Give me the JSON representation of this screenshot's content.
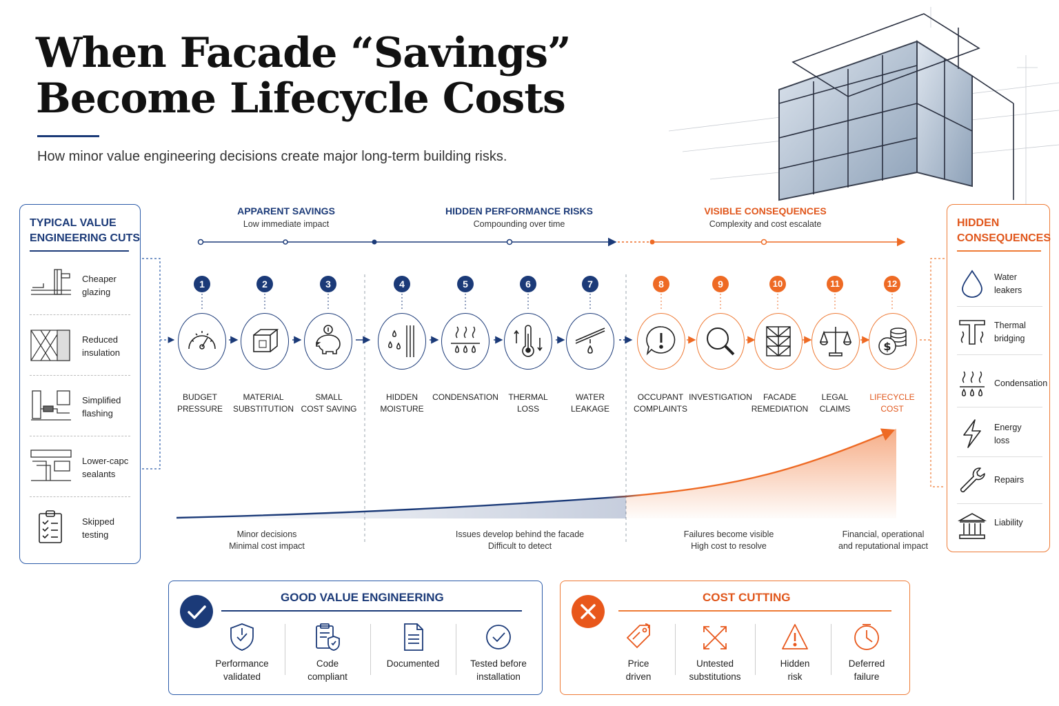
{
  "title_line1": "When Facade “Savings”",
  "title_line2": "Become Lifecycle Costs",
  "subtitle": "How minor value engineering decisions create major long-term building risks.",
  "left_panel": {
    "title_line1": "TYPICAL VALUE",
    "title_line2": "ENGINEERING CUTS",
    "items": [
      {
        "line1": "Cheaper",
        "line2": "glazing",
        "icon": "glazing-section-icon"
      },
      {
        "line1": "Reduced",
        "line2": "insulation",
        "icon": "insulation-section-icon"
      },
      {
        "line1": "Simplified",
        "line2": "flashing",
        "icon": "flashing-section-icon"
      },
      {
        "line1": "Lower-capc",
        "line2": "sealants",
        "icon": "sealant-section-icon"
      },
      {
        "line1": "Skipped",
        "line2": "testing",
        "icon": "checklist-icon"
      }
    ]
  },
  "right_panel": {
    "title_line1": "HIDDEN",
    "title_line2": "CONSEQUENCES",
    "items": [
      {
        "line1": "Water",
        "line2": "leakers",
        "icon": "water-drop-icon"
      },
      {
        "line1": "Thermal",
        "line2": "bridging",
        "icon": "thermal-bridge-icon"
      },
      {
        "line1": "Condensation",
        "line2": "",
        "icon": "condensation-icon"
      },
      {
        "line1": "Energy",
        "line2": "loss",
        "icon": "lightning-icon"
      },
      {
        "line1": "Repairs",
        "line2": "",
        "icon": "wrench-icon"
      },
      {
        "line1": "Liability",
        "line2": "",
        "icon": "courthouse-icon"
      }
    ]
  },
  "phases": [
    {
      "heading": "APPARENT SAVINGS",
      "sub": "Low immediate impact"
    },
    {
      "heading": "HIDDEN PERFORMANCE RISKS",
      "sub": "Compounding over time"
    },
    {
      "heading": "VISIBLE CONSEQUENCES",
      "sub": "Complexity and cost escalate"
    }
  ],
  "steps": [
    {
      "num": "1",
      "line1": "BUDGET",
      "line2": "PRESSURE",
      "icon": "gauge-icon"
    },
    {
      "num": "2",
      "line1": "MATERIAL",
      "line2": "SUBSTITUTION",
      "icon": "cube-icon"
    },
    {
      "num": "3",
      "line1": "SMALL",
      "line2": "COST SAVING",
      "icon": "piggy-bank-icon"
    },
    {
      "num": "4",
      "line1": "HIDDEN",
      "line2": "MOISTURE",
      "icon": "moisture-wall-icon"
    },
    {
      "num": "5",
      "line1": "CONDENSATION",
      "line2": "",
      "icon": "condensation-icon"
    },
    {
      "num": "6",
      "line1": "THERMAL",
      "line2": "LOSS",
      "icon": "thermometer-icon"
    },
    {
      "num": "7",
      "line1": "WATER",
      "line2": "LEAKAGE",
      "icon": "leak-icon"
    },
    {
      "num": "8",
      "line1": "OCCUPANT",
      "line2": "COMPLAINTS",
      "icon": "alert-bubble-icon"
    },
    {
      "num": "9",
      "line1": "INVESTIGATION",
      "line2": "",
      "icon": "magnifier-icon"
    },
    {
      "num": "10",
      "line1": "FACADE",
      "line2": "REMEDIATION",
      "icon": "scaffold-icon"
    },
    {
      "num": "11",
      "line1": "LEGAL",
      "line2": "CLAIMS",
      "icon": "scales-icon"
    },
    {
      "num": "12",
      "line1": "LIFECYCLE",
      "line2": "COST",
      "icon": "coins-icon"
    }
  ],
  "curve_notes": [
    {
      "line1": "Minor decisions",
      "line2": "Minimal cost impact"
    },
    {
      "line1": "Issues develop behind the facade",
      "line2": "Difficult to detect"
    },
    {
      "line1": "Failures become visible",
      "line2": "High cost to resolve"
    },
    {
      "line1": "Financial, operational",
      "line2": "and reputational impact"
    }
  ],
  "good": {
    "title": "GOOD VALUE ENGINEERING",
    "items": [
      {
        "line1": "Performance",
        "line2": "validated",
        "icon": "shield-check-icon"
      },
      {
        "line1": "Code",
        "line2": "compliant",
        "icon": "clipboard-shield-icon"
      },
      {
        "line1": "Documented",
        "line2": "",
        "icon": "document-icon"
      },
      {
        "line1": "Tested before",
        "line2": "installation",
        "icon": "check-circle-icon"
      }
    ]
  },
  "bad": {
    "title": "COST CUTTING",
    "items": [
      {
        "line1": "Price",
        "line2": "driven",
        "icon": "price-tag-icon"
      },
      {
        "line1": "Untested",
        "line2": "substitutions",
        "icon": "swap-arrows-icon"
      },
      {
        "line1": "Hidden",
        "line2": "risk",
        "icon": "warning-icon"
      },
      {
        "line1": "Deferred",
        "line2": "failure",
        "icon": "clock-icon"
      }
    ]
  },
  "colors": {
    "navy": "#1b3a78",
    "orange": "#ee6a24"
  }
}
